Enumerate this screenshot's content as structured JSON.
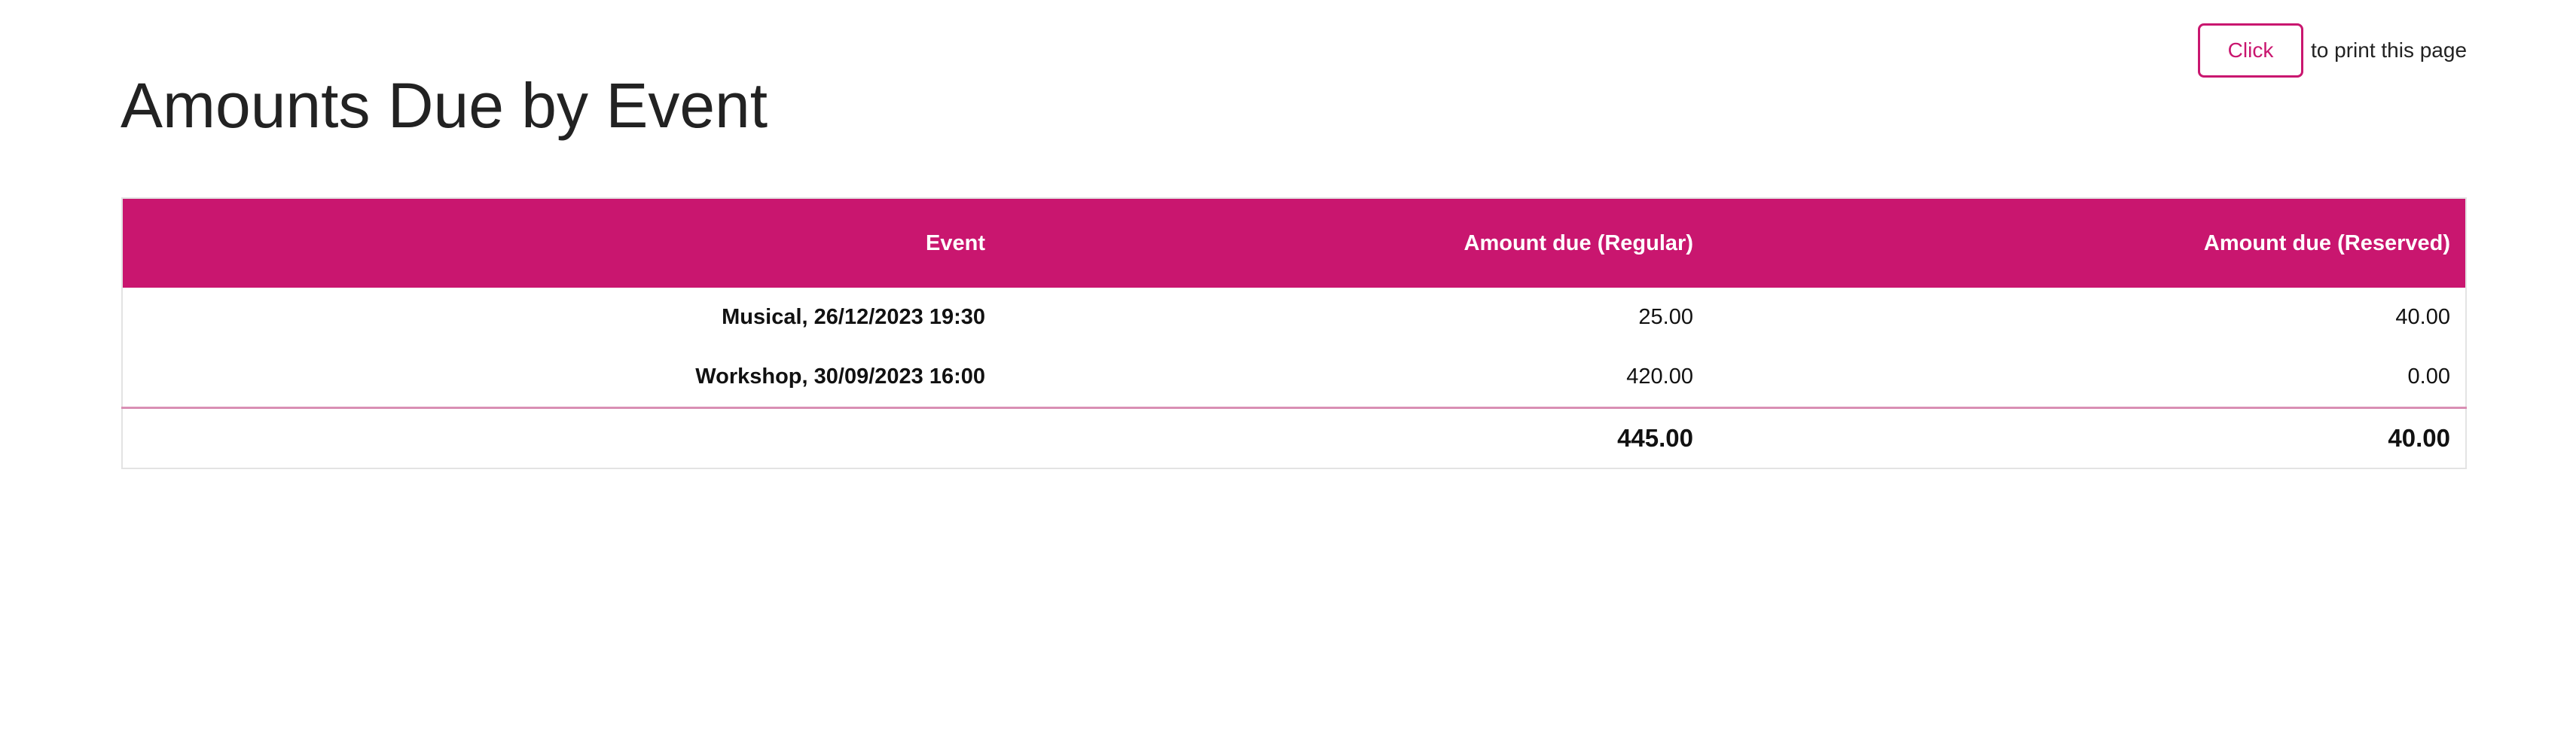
{
  "print": {
    "button_label": "Click",
    "text": "to print this page"
  },
  "page_title": "Amounts Due by Event",
  "table": {
    "headers": [
      "Event",
      "Amount due (Regular)",
      "Amount due (Reserved)"
    ],
    "rows": [
      {
        "event": "Musical, 26/12/2023 19:30",
        "regular": "25.00",
        "reserved": "40.00"
      },
      {
        "event": "Workshop, 30/09/2023 16:00",
        "regular": "420.00",
        "reserved": "0.00"
      }
    ],
    "totals": {
      "event": "",
      "regular": "445.00",
      "reserved": "40.00"
    }
  },
  "colors": {
    "accent": "#c9166f"
  }
}
